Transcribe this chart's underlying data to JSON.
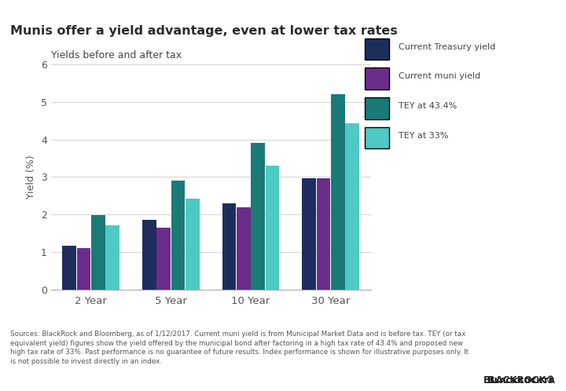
{
  "title": "Munis offer a yield advantage, even at lower tax rates",
  "subtitle": "Yields before and after tax",
  "title_bg_color": "#d4d4d4",
  "categories": [
    "2 Year",
    "5 Year",
    "10 Year",
    "30 Year"
  ],
  "series": {
    "Current Treasury yield": [
      1.17,
      1.85,
      2.3,
      2.97
    ],
    "Current muni yield": [
      1.1,
      1.65,
      2.18,
      2.97
    ],
    "TEY at 43.4%": [
      1.99,
      2.9,
      3.9,
      5.2
    ],
    "TEY at 33%": [
      1.7,
      2.43,
      3.3,
      4.43
    ]
  },
  "colors": {
    "Current Treasury yield": "#1f2d5c",
    "Current muni yield": "#6b2d8b",
    "TEY at 43.4%": "#1a7a78",
    "TEY at 33%": "#4ec9c4"
  },
  "ylabel": "Yield (%)",
  "ylim": [
    0,
    6
  ],
  "yticks": [
    0,
    1,
    2,
    3,
    4,
    5,
    6
  ],
  "footnote_line1": "Sources: BlackRock and Bloomberg, as of 1/12/2017. Current muni yield is from Municipal Market Data and is before tax. TEY (or tax",
  "footnote_line2": "equivalent yield) figures show the yield offered by the municipal bond after factoring in a high tax rate of 43.4% and proposed new",
  "footnote_line3": "high tax rate of 33%. Past performance is no guarantee of future results. Index performance is shown for illustrative purposes only. It",
  "footnote_line4": "is not possible to invest directly in an index.",
  "background_color": "#ffffff",
  "plot_bg_color": "#ffffff",
  "grid_color": "#cccccc",
  "bar_width": 0.18
}
